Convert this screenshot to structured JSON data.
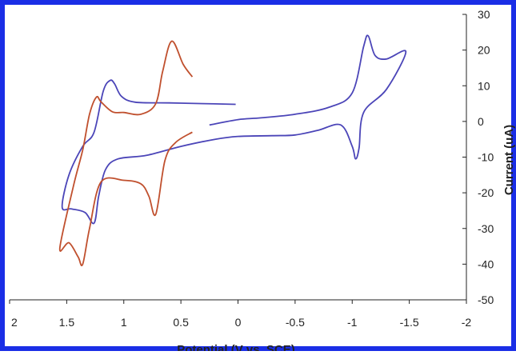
{
  "colors": {
    "border": "#1a2ee6",
    "series_blue": "#4b45b8",
    "series_red": "#c0502e",
    "axis": "#222222",
    "background": "#ffffff"
  },
  "chart_data": {
    "type": "line",
    "title": "",
    "xlabel": "Potential (V vs. SCE)",
    "ylabel": "Current (uA)",
    "xlim": [
      2,
      -2
    ],
    "ylim": [
      -50,
      30
    ],
    "x_reversed": true,
    "y_axis_side": "right",
    "grid": false,
    "legend": "none",
    "x_ticks": [
      2,
      1.5,
      1,
      0.5,
      0,
      -0.5,
      -1,
      -1.5,
      -2
    ],
    "x_tick_labels": [
      "2",
      "1.5",
      "1",
      "0.5",
      "0",
      "-0.5",
      "-1",
      "-1.5",
      "-2"
    ],
    "y_ticks": [
      30,
      20,
      10,
      0,
      -10,
      -20,
      -30,
      -40,
      -50
    ],
    "y_tick_labels": [
      "30",
      "20",
      "10",
      "0",
      "-10",
      "-20",
      "-30",
      "-40",
      "-50"
    ],
    "series": [
      {
        "color": "#4b45b8",
        "points": [
          [
            0.02,
            4.8
          ],
          [
            0.3,
            5.0
          ],
          [
            0.6,
            5.2
          ],
          [
            0.9,
            5.4
          ],
          [
            1.02,
            7.0
          ],
          [
            1.08,
            10.5
          ],
          [
            1.12,
            11.5
          ],
          [
            1.18,
            8.5
          ],
          [
            1.26,
            -3.0
          ],
          [
            1.36,
            -7.0
          ],
          [
            1.48,
            -15.0
          ],
          [
            1.54,
            -24.0
          ],
          [
            1.46,
            -24.5
          ],
          [
            1.34,
            -25.5
          ],
          [
            1.26,
            -28.5
          ],
          [
            1.22,
            -21.0
          ],
          [
            1.16,
            -13.5
          ],
          [
            1.05,
            -10.5
          ],
          [
            0.8,
            -9.5
          ],
          [
            0.5,
            -7.0
          ],
          [
            0.2,
            -5.0
          ],
          [
            0.0,
            -4.2
          ],
          [
            -0.3,
            -4.0
          ],
          [
            -0.5,
            -3.8
          ],
          [
            -0.7,
            -2.5
          ],
          [
            -0.9,
            -1.0
          ],
          [
            -1.0,
            -7.0
          ],
          [
            -1.03,
            -10.5
          ],
          [
            -1.06,
            -7.5
          ],
          [
            -1.1,
            2.5
          ],
          [
            -1.3,
            9.0
          ],
          [
            -1.47,
            19.5
          ],
          [
            -1.3,
            17.5
          ],
          [
            -1.2,
            18.5
          ],
          [
            -1.14,
            24.0
          ],
          [
            -1.1,
            21.0
          ],
          [
            -1.0,
            8.0
          ],
          [
            -0.8,
            4.0
          ],
          [
            -0.5,
            2.0
          ],
          [
            -0.2,
            1.0
          ],
          [
            0.0,
            0.5
          ],
          [
            0.25,
            -1.0
          ]
        ]
      },
      {
        "color": "#c0502e",
        "points": [
          [
            0.4,
            12.5
          ],
          [
            0.48,
            16.0
          ],
          [
            0.58,
            22.5
          ],
          [
            0.66,
            14.0
          ],
          [
            0.72,
            5.0
          ],
          [
            0.85,
            2.0
          ],
          [
            1.0,
            2.5
          ],
          [
            1.1,
            2.7
          ],
          [
            1.2,
            5.5
          ],
          [
            1.24,
            6.8
          ],
          [
            1.3,
            2.0
          ],
          [
            1.36,
            -8.0
          ],
          [
            1.44,
            -18.0
          ],
          [
            1.56,
            -35.5
          ],
          [
            1.48,
            -34.0
          ],
          [
            1.4,
            -38.0
          ],
          [
            1.36,
            -40.0
          ],
          [
            1.3,
            -30.0
          ],
          [
            1.2,
            -17.0
          ],
          [
            1.0,
            -16.5
          ],
          [
            0.85,
            -17.5
          ],
          [
            0.78,
            -21.0
          ],
          [
            0.72,
            -26.0
          ],
          [
            0.64,
            -11.0
          ],
          [
            0.55,
            -6.0
          ],
          [
            0.4,
            -3.0
          ]
        ]
      }
    ]
  }
}
